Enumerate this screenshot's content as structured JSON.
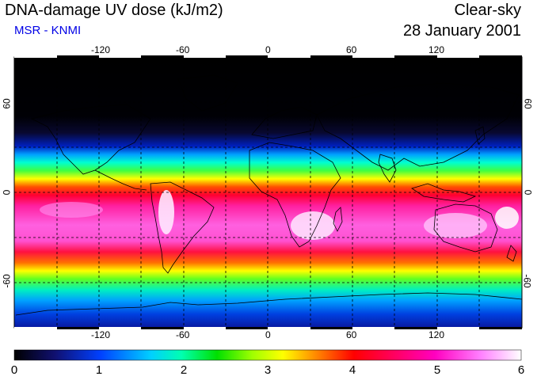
{
  "header": {
    "title": "DNA-damage UV dose (kJ/m2)",
    "source": "MSR - KNMI",
    "sky_condition": "Clear-sky",
    "date": "28 January 2001"
  },
  "map": {
    "projection": "equirectangular",
    "longitude_ticks": [
      "-120",
      "-60",
      "0",
      "60",
      "120"
    ],
    "latitude_ticks_left": [
      "60",
      "0",
      "-60"
    ],
    "latitude_ticks_right": [
      "60",
      "0",
      "-60"
    ],
    "lon_grid": [
      -150,
      -120,
      -90,
      -60,
      -30,
      0,
      30,
      60,
      90,
      120,
      150
    ],
    "lat_grid": [
      60,
      30,
      0,
      -30,
      -60
    ]
  },
  "colorbar": {
    "labels": [
      "0",
      "1",
      "2",
      "3",
      "4",
      "5",
      "6"
    ],
    "min": 0,
    "max": 6,
    "units": "kJ/m2",
    "colors": [
      "#000000",
      "#101080",
      "#0040ff",
      "#00c0ff",
      "#00ffc0",
      "#00e000",
      "#80ff00",
      "#ffff00",
      "#ff8000",
      "#ff0000",
      "#ff0060",
      "#ff00c0",
      "#ff80ff",
      "#ffffff"
    ]
  }
}
